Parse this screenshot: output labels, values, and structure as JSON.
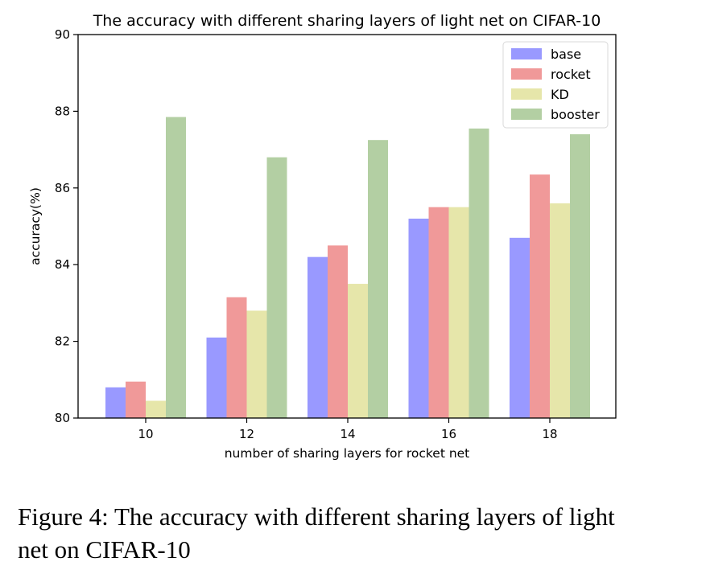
{
  "chart_data": {
    "type": "bar",
    "title": "The accuracy with different sharing layers of light net on CIFAR-10",
    "xlabel": "number of sharing layers for rocket net",
    "ylabel": "accuracy(%)",
    "categories": [
      "10",
      "12",
      "14",
      "16",
      "18"
    ],
    "ylim": [
      80,
      90
    ],
    "yticks": [
      "80",
      "82",
      "84",
      "86",
      "88",
      "90"
    ],
    "grid": false,
    "legend_position": "top-right",
    "series": [
      {
        "name": "base",
        "color": "#9999ff",
        "values": [
          80.8,
          82.1,
          84.2,
          85.2,
          84.7
        ]
      },
      {
        "name": "rocket",
        "color": "#f09999",
        "values": [
          80.95,
          83.15,
          84.5,
          85.5,
          86.35
        ]
      },
      {
        "name": "KD",
        "color": "#e6e6aa",
        "values": [
          80.45,
          82.8,
          83.5,
          85.5,
          85.6
        ]
      },
      {
        "name": "booster",
        "color": "#b3cfa3",
        "values": [
          87.85,
          86.8,
          87.25,
          87.55,
          87.4
        ]
      }
    ]
  },
  "caption": {
    "line1": "Figure 4: The accuracy with different sharing layers of light",
    "line2": "net on CIFAR-10"
  }
}
